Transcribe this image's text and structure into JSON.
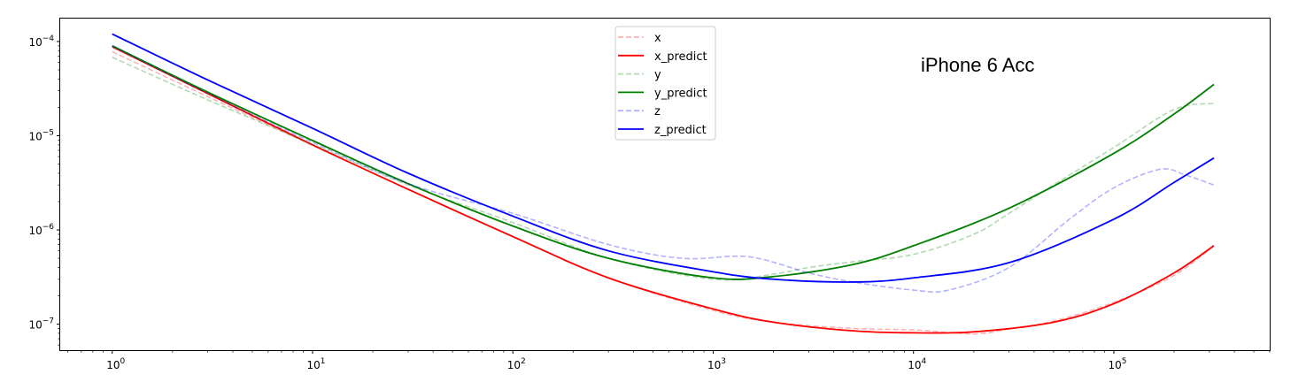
{
  "chart_data": {
    "type": "line",
    "title": "",
    "xlabel": "",
    "ylabel": "",
    "xscale": "log",
    "yscale": "log",
    "xlim": [
      0.55,
      600000
    ],
    "ylim": [
      5.3e-08,
      0.000175
    ],
    "grid": false,
    "legend_position": "top-center",
    "annotation": "iPhone 6 Acc",
    "x_ticks": [
      {
        "value": 1,
        "base": "10",
        "exp": "0"
      },
      {
        "value": 10,
        "base": "10",
        "exp": "1"
      },
      {
        "value": 100,
        "base": "10",
        "exp": "2"
      },
      {
        "value": 1000,
        "base": "10",
        "exp": "3"
      },
      {
        "value": 10000,
        "base": "10",
        "exp": "4"
      },
      {
        "value": 100000,
        "base": "10",
        "exp": "5"
      }
    ],
    "y_ticks": [
      {
        "value": 1e-07,
        "base": "10",
        "exp": "−7"
      },
      {
        "value": 1e-06,
        "base": "10",
        "exp": "−6"
      },
      {
        "value": 1e-05,
        "base": "10",
        "exp": "−5"
      },
      {
        "value": 0.0001,
        "base": "10",
        "exp": "−4"
      }
    ],
    "series": [
      {
        "name": "x",
        "color": "#ff0000",
        "dashed": true,
        "opacity": 0.3,
        "points": [
          [
            1,
            7.8e-05
          ],
          [
            3,
            2.6e-05
          ],
          [
            10,
            7.9e-06
          ],
          [
            30,
            2.7e-06
          ],
          [
            100,
            8.5e-07
          ],
          [
            300,
            3.1e-07
          ],
          [
            1000,
            1.4e-07
          ],
          [
            2000,
            1.05e-07
          ],
          [
            5000,
            9e-08
          ],
          [
            10000,
            8.7e-08
          ],
          [
            20000,
            7.9e-08
          ],
          [
            30000,
            8.9e-08
          ],
          [
            50000,
            1.08e-07
          ],
          [
            100000,
            1.7e-07
          ],
          [
            200000,
            3.3e-07
          ],
          [
            316000,
            6.8e-07
          ]
        ]
      },
      {
        "name": "x_predict",
        "color": "#ff0000",
        "dashed": false,
        "opacity": 1,
        "points": [
          [
            1,
            8.8e-05
          ],
          [
            3,
            2.8e-05
          ],
          [
            10,
            8e-06
          ],
          [
            30,
            2.7e-06
          ],
          [
            100,
            8.5e-07
          ],
          [
            300,
            3.1e-07
          ],
          [
            1000,
            1.45e-07
          ],
          [
            2000,
            1.05e-07
          ],
          [
            5000,
            8.5e-08
          ],
          [
            10000,
            8.1e-08
          ],
          [
            20000,
            8.3e-08
          ],
          [
            50000,
            1.05e-07
          ],
          [
            100000,
            1.65e-07
          ],
          [
            200000,
            3.5e-07
          ],
          [
            316000,
            6.8e-07
          ]
        ]
      },
      {
        "name": "y",
        "color": "#008000",
        "dashed": true,
        "opacity": 0.3,
        "points": [
          [
            1,
            6.8e-05
          ],
          [
            3,
            2.4e-05
          ],
          [
            10,
            8.1e-06
          ],
          [
            30,
            3e-06
          ],
          [
            100,
            1.2e-06
          ],
          [
            300,
            5e-07
          ],
          [
            1000,
            3e-07
          ],
          [
            2000,
            3.4e-07
          ],
          [
            3000,
            4e-07
          ],
          [
            5000,
            4.6e-07
          ],
          [
            10000,
            5.5e-07
          ],
          [
            20000,
            9e-07
          ],
          [
            30000,
            1.5e-06
          ],
          [
            50000,
            3e-06
          ],
          [
            100000,
            7.5e-06
          ],
          [
            200000,
            1.9e-05
          ],
          [
            316000,
            2.2e-05
          ]
        ]
      },
      {
        "name": "y_predict",
        "color": "#008000",
        "dashed": false,
        "opacity": 1,
        "points": [
          [
            1,
            9e-05
          ],
          [
            3,
            2.9e-05
          ],
          [
            10,
            8.9e-06
          ],
          [
            30,
            3.1e-06
          ],
          [
            100,
            1.1e-06
          ],
          [
            300,
            5e-07
          ],
          [
            1000,
            3.1e-07
          ],
          [
            2000,
            3.2e-07
          ],
          [
            5000,
            4.3e-07
          ],
          [
            10000,
            6.8e-07
          ],
          [
            30000,
            1.7e-06
          ],
          [
            100000,
            6.5e-06
          ],
          [
            200000,
            1.7e-05
          ],
          [
            316000,
            3.5e-05
          ]
        ]
      },
      {
        "name": "z",
        "color": "#0000ff",
        "dashed": true,
        "opacity": 0.3,
        "points": [
          [
            1,
            9e-05
          ],
          [
            3,
            2.8e-05
          ],
          [
            10,
            8.5e-06
          ],
          [
            30,
            3.1e-06
          ],
          [
            100,
            1.5e-06
          ],
          [
            300,
            7e-07
          ],
          [
            700,
            5e-07
          ],
          [
            1500,
            5.2e-07
          ],
          [
            3000,
            3.5e-07
          ],
          [
            5000,
            2.8e-07
          ],
          [
            10000,
            2.3e-07
          ],
          [
            15000,
            2.3e-07
          ],
          [
            30000,
            4e-07
          ],
          [
            60000,
            1.3e-06
          ],
          [
            100000,
            2.8e-06
          ],
          [
            170000,
            4.4e-06
          ],
          [
            230000,
            3.8e-06
          ],
          [
            316000,
            3e-06
          ]
        ]
      },
      {
        "name": "z_predict",
        "color": "#0000ff",
        "dashed": false,
        "opacity": 1,
        "points": [
          [
            1,
            0.00012
          ],
          [
            3,
            3.9e-05
          ],
          [
            10,
            1.2e-05
          ],
          [
            30,
            4e-06
          ],
          [
            100,
            1.4e-06
          ],
          [
            300,
            6e-07
          ],
          [
            1000,
            3.6e-07
          ],
          [
            2000,
            3e-07
          ],
          [
            5000,
            2.8e-07
          ],
          [
            10000,
            3.1e-07
          ],
          [
            30000,
            4.5e-07
          ],
          [
            100000,
            1.3e-06
          ],
          [
            200000,
            3.2e-06
          ],
          [
            316000,
            5.8e-06
          ]
        ]
      }
    ]
  }
}
